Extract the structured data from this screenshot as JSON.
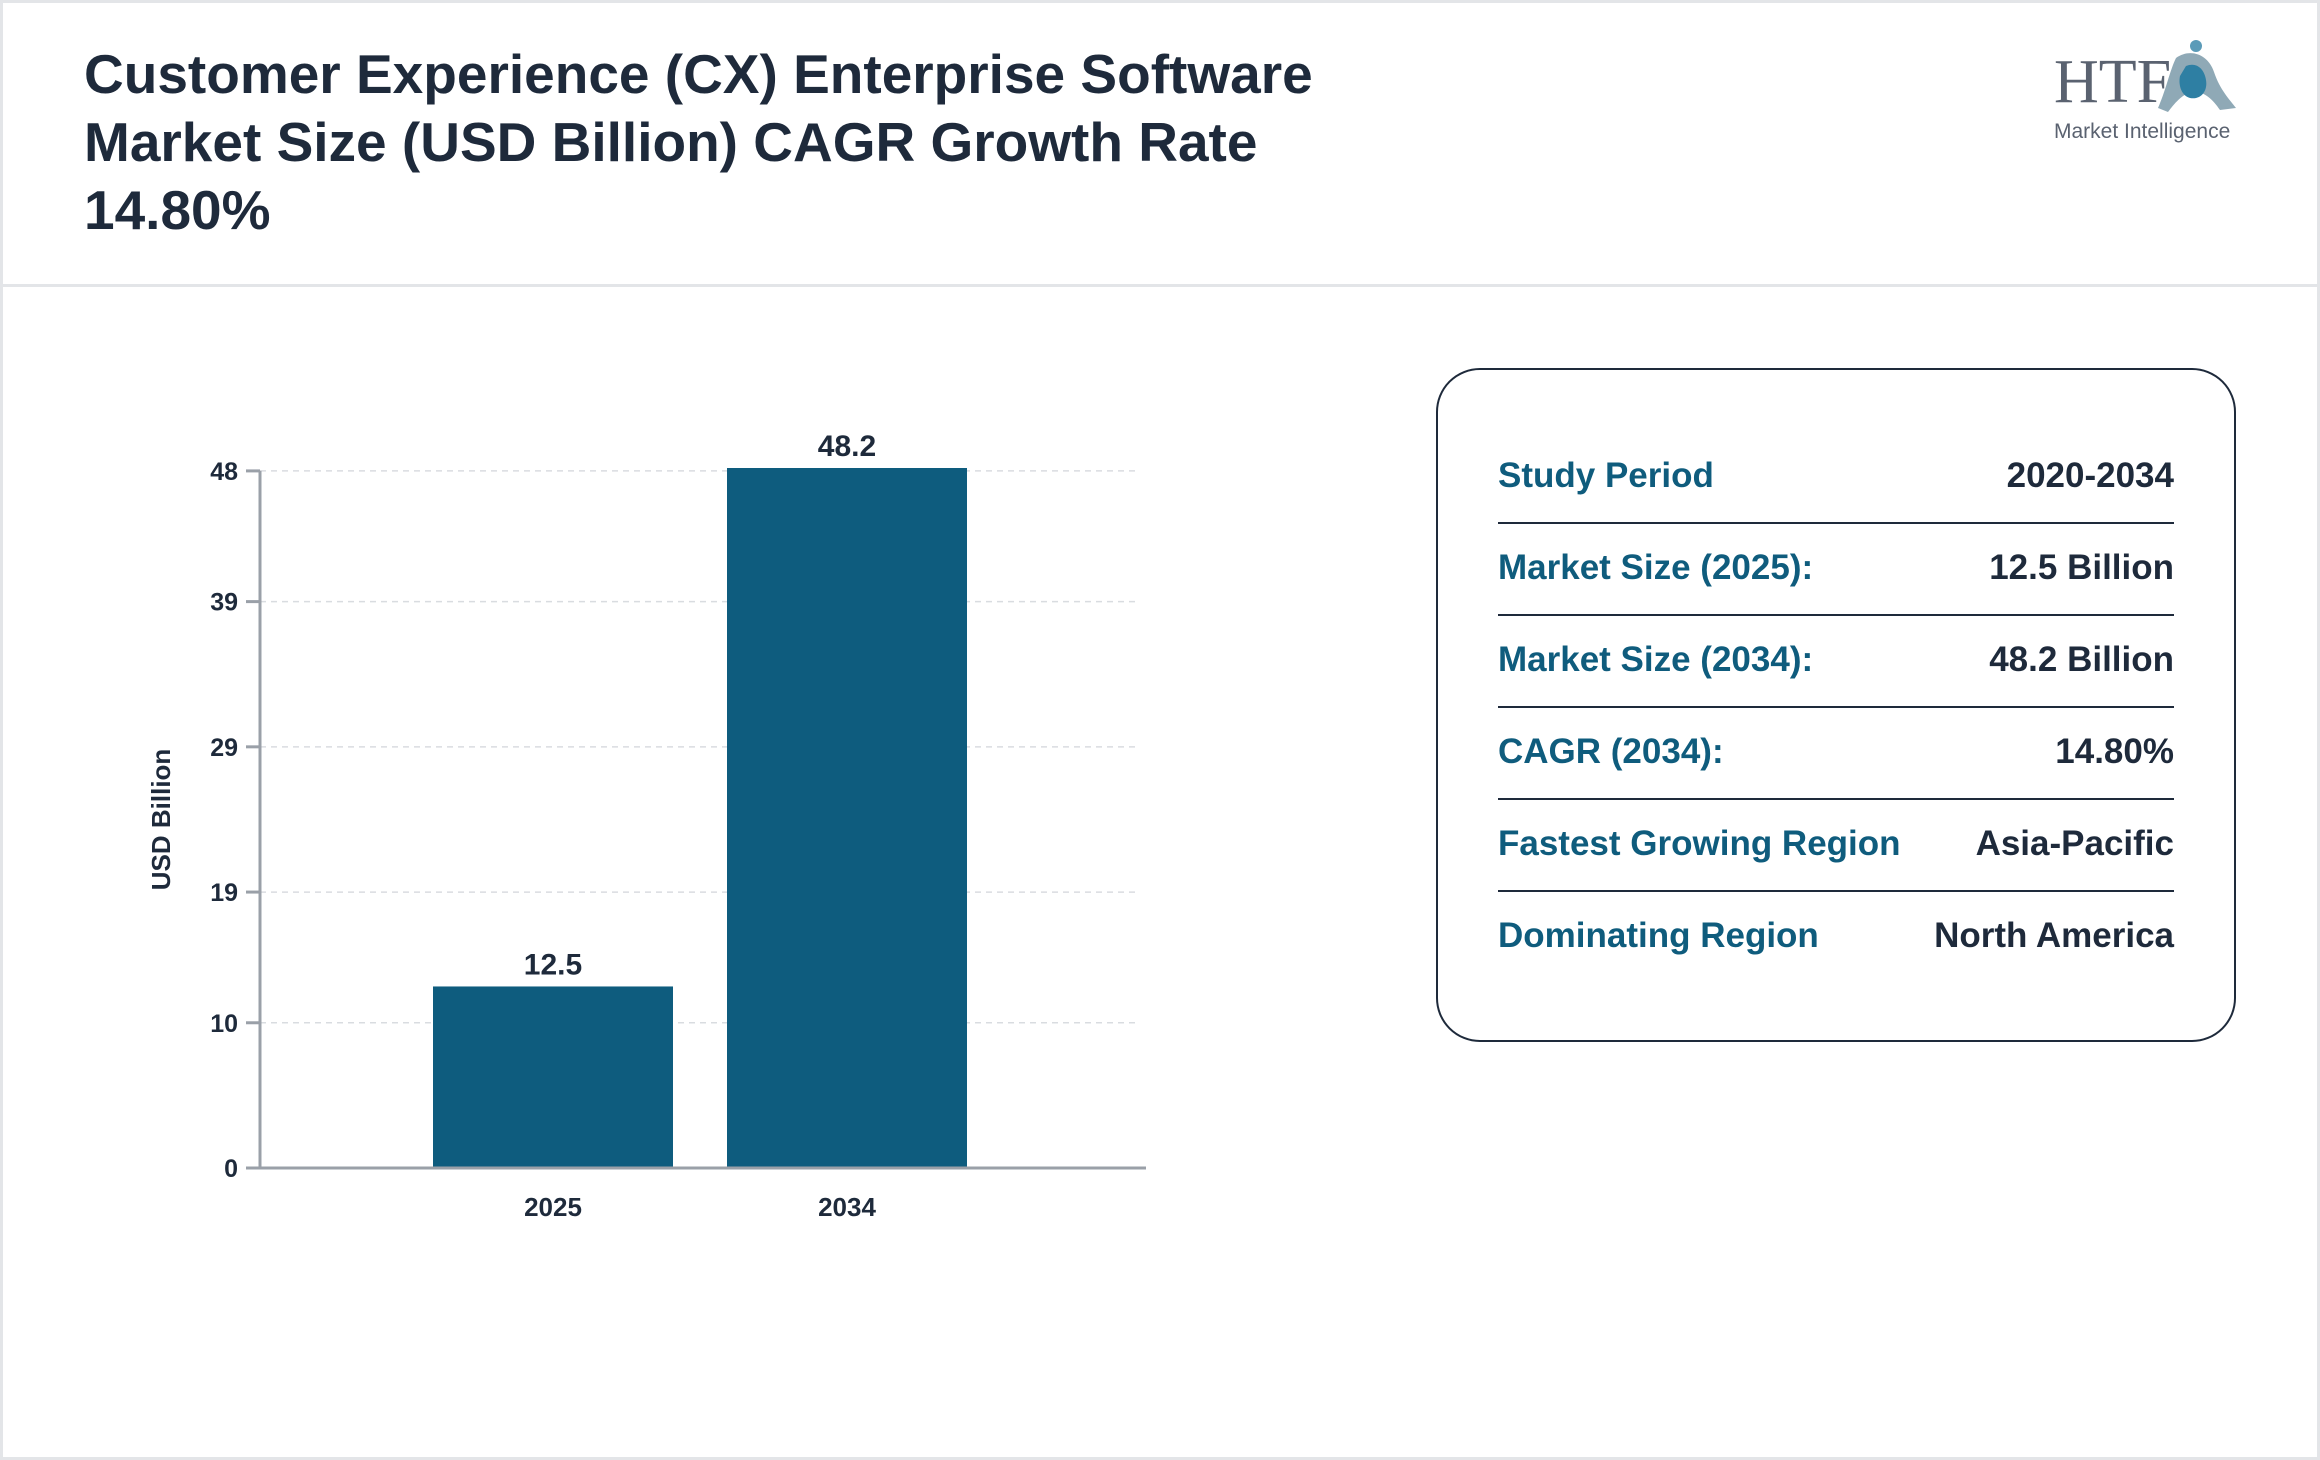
{
  "header": {
    "title": "Customer Experience (CX) Enterprise Software Market Size (USD Billion) CAGR Growth Rate 14.80%",
    "logo": {
      "text_main": "HTF",
      "text_sub": "Market Intelligence"
    }
  },
  "colors": {
    "bar": "#0e5c7e",
    "label": "#0f5c7d",
    "text": "#1e2a3b"
  },
  "chart_data": {
    "type": "bar",
    "categories": [
      "2025",
      "2034"
    ],
    "values": [
      12.5,
      48.2
    ],
    "data_labels": [
      "12.5",
      "48.2"
    ],
    "ylabel": "USD Billion",
    "xlabel": "",
    "yticks": [
      0,
      10,
      19,
      29,
      39,
      48
    ],
    "ylim": [
      0,
      48.2
    ],
    "grid": true,
    "legend": "none"
  },
  "info": {
    "rows": [
      {
        "label": "Study Period",
        "value": "2020-2034"
      },
      {
        "label": "Market Size (2025):",
        "value": "12.5 Billion"
      },
      {
        "label": "Market Size (2034):",
        "value": "48.2 Billion"
      },
      {
        "label": "CAGR (2034):",
        "value": "14.80%"
      },
      {
        "label": "Fastest Growing Region",
        "value": "Asia-Pacific"
      },
      {
        "label": "Dominating Region",
        "value": "North America"
      }
    ]
  }
}
